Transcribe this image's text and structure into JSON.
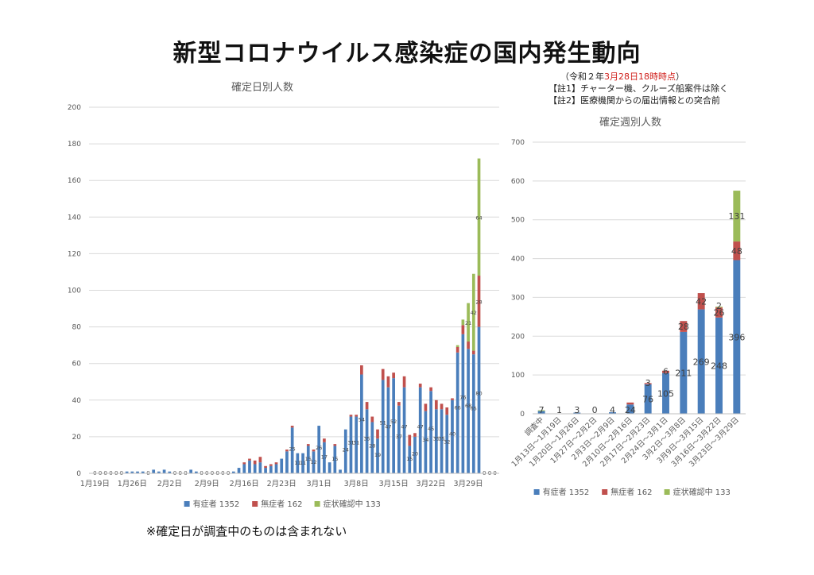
{
  "title": "新型コロナウイルス感染症の国内発生動向",
  "notes": {
    "date_open": "（令和２年",
    "date_red": "3月28日18時時点",
    "date_close": "）",
    "note1": "【註1】チャーター機、クルーズ船案件は除く",
    "note2": "【註2】医療機関からの届出情報との突合前"
  },
  "footer_note": "※確定日が調査中のものは含まれない",
  "colors": {
    "symptomatic": "#4a7ebb",
    "asymptomatic": "#c0504d",
    "unconfirmed": "#9bbb59",
    "grid": "#d9d9d9",
    "axis_text": "#595959"
  },
  "chart_data": [
    {
      "type": "bar",
      "stacked": true,
      "title": "確定日別人数",
      "ylim": [
        0,
        200
      ],
      "yticks": [
        0,
        20,
        40,
        60,
        80,
        100,
        120,
        140,
        160,
        180,
        200
      ],
      "grid": true,
      "legend_position": "bottom",
      "x_tick_labels": [
        {
          "index": 0,
          "label": "1月19日"
        },
        {
          "index": 7,
          "label": "1月26日"
        },
        {
          "index": 14,
          "label": "2月2日"
        },
        {
          "index": 21,
          "label": "2月9日"
        },
        {
          "index": 28,
          "label": "2月16日"
        },
        {
          "index": 35,
          "label": "2月23日"
        },
        {
          "index": 42,
          "label": "3月1日"
        },
        {
          "index": 49,
          "label": "3月8日"
        },
        {
          "index": 56,
          "label": "3月15日"
        },
        {
          "index": 63,
          "label": "3月22日"
        },
        {
          "index": 70,
          "label": "3月29日"
        }
      ],
      "legend": [
        "有症者 1352",
        "無症者 162",
        "症状確認中 133"
      ],
      "series": [
        {
          "name": "有症者 1352",
          "color": "#4a7ebb",
          "values": [
            0,
            0,
            0,
            0,
            0,
            0,
            1,
            1,
            1,
            1,
            0,
            2,
            1,
            2,
            1,
            0,
            0,
            0,
            2,
            1,
            0,
            0,
            0,
            0,
            0,
            0,
            1,
            3,
            5,
            7,
            5,
            6,
            3,
            4,
            5,
            8,
            12,
            25,
            11,
            11,
            15,
            12,
            26,
            17,
            6,
            15,
            2,
            24,
            31,
            31,
            54,
            35,
            28,
            19,
            51,
            47,
            52,
            37,
            47,
            15,
            20,
            47,
            34,
            45,
            35,
            35,
            32,
            40,
            66,
            76,
            68,
            65,
            80,
            0,
            0,
            0
          ]
        },
        {
          "name": "無症者 162",
          "color": "#c0504d",
          "values": [
            0,
            0,
            0,
            0,
            0,
            0,
            0,
            0,
            0,
            0,
            0,
            0,
            0,
            0,
            0,
            0,
            0,
            0,
            0,
            0,
            0,
            0,
            0,
            0,
            0,
            0,
            0,
            0,
            1,
            1,
            2,
            3,
            1,
            1,
            1,
            0,
            1,
            1,
            0,
            0,
            1,
            1,
            0,
            2,
            0,
            1,
            0,
            0,
            1,
            1,
            5,
            4,
            3,
            5,
            6,
            6,
            3,
            2,
            6,
            6,
            2,
            2,
            4,
            2,
            5,
            3,
            4,
            1,
            3,
            5,
            4,
            2,
            28,
            0,
            0,
            0
          ]
        },
        {
          "name": "症状確認中 133",
          "color": "#9bbb59",
          "values": [
            0,
            0,
            0,
            0,
            0,
            0,
            0,
            0,
            0,
            0,
            0,
            0,
            0,
            0,
            0,
            0,
            0,
            0,
            0,
            0,
            0,
            0,
            0,
            0,
            0,
            0,
            0,
            0,
            0,
            0,
            0,
            0,
            0,
            0,
            0,
            0,
            0,
            0,
            0,
            0,
            0,
            0,
            0,
            0,
            0,
            0,
            0,
            0,
            0,
            0,
            0,
            0,
            0,
            0,
            0,
            0,
            0,
            0,
            0,
            0,
            0,
            0,
            0,
            0,
            0,
            0,
            0,
            0,
            1,
            3,
            21,
            42,
            64,
            0,
            0,
            0
          ]
        }
      ],
      "bar_labels": [
        {
          "index": 37,
          "text": "25"
        },
        {
          "index": 38,
          "text": "11"
        },
        {
          "index": 39,
          "text": "11"
        },
        {
          "index": 40,
          "text": "15"
        },
        {
          "index": 41,
          "text": "12"
        },
        {
          "index": 42,
          "text": "26"
        },
        {
          "index": 43,
          "text": "17"
        },
        {
          "index": 45,
          "text": "15"
        },
        {
          "index": 47,
          "text": "24"
        },
        {
          "index": 48,
          "text": "31"
        },
        {
          "index": 49,
          "text": "31"
        },
        {
          "index": 50,
          "text": "54"
        },
        {
          "index": 51,
          "text": "35"
        },
        {
          "index": 52,
          "text": "28"
        },
        {
          "index": 53,
          "text": "19"
        },
        {
          "index": 54,
          "text": "51"
        },
        {
          "index": 55,
          "text": "47"
        },
        {
          "index": 56,
          "text": "52"
        },
        {
          "index": 57,
          "text": "37"
        },
        {
          "index": 58,
          "text": "47"
        },
        {
          "index": 59,
          "text": "15"
        },
        {
          "index": 60,
          "text": "20"
        },
        {
          "index": 61,
          "text": "47"
        },
        {
          "index": 62,
          "text": "34"
        },
        {
          "index": 63,
          "text": "45"
        },
        {
          "index": 64,
          "text": "35"
        },
        {
          "index": 65,
          "text": "35"
        },
        {
          "index": 66,
          "text": "32"
        },
        {
          "index": 67,
          "text": "40"
        },
        {
          "index": 68,
          "text": "66"
        },
        {
          "index": 69,
          "text": "76"
        },
        {
          "index": 70,
          "text": "68"
        },
        {
          "index": 71,
          "text": "65"
        },
        {
          "index": 72,
          "text": "80"
        },
        {
          "index": 70,
          "text": "21",
          "series": "unconfirmed"
        },
        {
          "index": 71,
          "text": "42",
          "series": "unconfirmed"
        },
        {
          "index": 72,
          "text": "64",
          "series": "unconfirmed"
        },
        {
          "index": 72,
          "text": "28",
          "series": "asymptomatic"
        }
      ]
    },
    {
      "type": "bar",
      "stacked": true,
      "title": "確定週別人数",
      "ylim": [
        0,
        700
      ],
      "yticks": [
        0,
        100,
        200,
        300,
        400,
        500,
        600,
        700
      ],
      "grid": true,
      "legend_position": "bottom",
      "categories": [
        "調査中",
        "1月13日～1月19日",
        "1月20日～1月26日",
        "1月27日～2月2日",
        "2月3日～2月9日",
        "2月10日～2月16日",
        "2月17日～2月23日",
        "2月24日～3月1日",
        "3月2日～3月8日",
        "3月9日～3月15日",
        "3月16日～3月22日",
        "3月23日～3月29日"
      ],
      "legend": [
        "有症者 1352",
        "無症者 162",
        "症状確認中 133"
      ],
      "series": [
        {
          "name": "有症者 1352",
          "color": "#4a7ebb",
          "values": [
            7,
            1,
            3,
            0,
            4,
            24,
            76,
            105,
            211,
            269,
            248,
            396
          ]
        },
        {
          "name": "無症者 162",
          "color": "#c0504d",
          "values": [
            0,
            0,
            0,
            0,
            0,
            5,
            3,
            6,
            28,
            42,
            26,
            48
          ]
        },
        {
          "name": "症状確認中 133",
          "color": "#9bbb59",
          "values": [
            2,
            0,
            0,
            0,
            0,
            0,
            0,
            0,
            0,
            0,
            2,
            131
          ]
        }
      ],
      "value_labels": [
        {
          "index": 0,
          "text": "7"
        },
        {
          "index": 1,
          "text": "1"
        },
        {
          "index": 2,
          "text": "3"
        },
        {
          "index": 3,
          "text": "0"
        },
        {
          "index": 4,
          "text": "4"
        },
        {
          "index": 5,
          "text": "24"
        },
        {
          "index": 6,
          "text": "76"
        },
        {
          "index": 7,
          "text": "105"
        },
        {
          "index": 8,
          "text": "211"
        },
        {
          "index": 9,
          "text": "269"
        },
        {
          "index": 10,
          "text": "248"
        },
        {
          "index": 11,
          "text": "396"
        },
        {
          "index": 6,
          "text": "3",
          "series": "asymptomatic"
        },
        {
          "index": 7,
          "text": "6",
          "series": "asymptomatic"
        },
        {
          "index": 8,
          "text": "28",
          "series": "asymptomatic"
        },
        {
          "index": 9,
          "text": "42",
          "series": "asymptomatic"
        },
        {
          "index": 10,
          "text": "26",
          "series": "asymptomatic"
        },
        {
          "index": 11,
          "text": "48",
          "series": "asymptomatic"
        },
        {
          "index": 10,
          "text": "2",
          "series": "unconfirmed"
        },
        {
          "index": 11,
          "text": "131",
          "series": "unconfirmed"
        }
      ]
    }
  ]
}
